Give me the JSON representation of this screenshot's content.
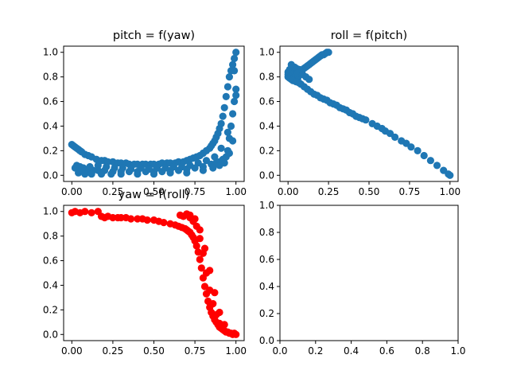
{
  "chart_data": [
    {
      "type": "scatter",
      "title": "pitch = f(yaw)",
      "xlabel": "",
      "ylabel": "",
      "xlim": [
        -0.05,
        1.05
      ],
      "ylim": [
        -0.05,
        1.05
      ],
      "xticks": [
        "0.00",
        "0.25",
        "0.50",
        "0.75",
        "1.00"
      ],
      "yticks": [
        "0.0",
        "0.2",
        "0.4",
        "0.6",
        "0.8",
        "1.0"
      ],
      "color": "#1f77b4",
      "points": {
        "x": [
          0.0,
          0.01,
          0.02,
          0.03,
          0.04,
          0.05,
          0.06,
          0.08,
          0.1,
          0.12,
          0.15,
          0.18,
          0.2,
          0.22,
          0.25,
          0.28,
          0.3,
          0.33,
          0.35,
          0.38,
          0.4,
          0.43,
          0.45,
          0.48,
          0.5,
          0.53,
          0.55,
          0.58,
          0.6,
          0.63,
          0.65,
          0.68,
          0.7,
          0.72,
          0.74,
          0.76,
          0.78,
          0.8,
          0.82,
          0.84,
          0.85,
          0.86,
          0.87,
          0.88,
          0.89,
          0.9,
          0.91,
          0.92,
          0.93,
          0.94,
          0.95,
          0.96,
          0.97,
          0.98,
          0.99,
          1.0,
          0.03,
          0.05,
          0.07,
          0.1,
          0.13,
          0.16,
          0.2,
          0.25,
          0.3,
          0.35,
          0.4,
          0.45,
          0.5,
          0.55,
          0.6,
          0.65,
          0.7,
          0.75,
          0.8,
          0.85,
          0.88,
          0.9,
          0.92,
          0.94,
          0.95,
          0.96,
          0.97,
          0.98,
          0.99,
          1.0,
          0.04,
          0.08,
          0.12,
          0.18,
          0.24,
          0.3,
          0.4,
          0.5,
          0.6,
          0.7,
          0.8,
          0.86,
          0.9,
          0.93,
          0.96,
          0.98,
          0.99,
          1.0,
          0.02,
          0.06,
          0.11,
          0.16,
          0.21,
          0.26,
          0.31,
          0.36,
          0.42,
          0.47,
          0.52,
          0.57,
          0.62,
          0.67,
          0.72,
          0.77,
          0.82,
          0.87,
          0.91,
          0.95
        ],
        "y": [
          0.25,
          0.24,
          0.23,
          0.22,
          0.21,
          0.2,
          0.19,
          0.17,
          0.16,
          0.15,
          0.13,
          0.12,
          0.12,
          0.11,
          0.11,
          0.1,
          0.1,
          0.1,
          0.09,
          0.09,
          0.09,
          0.09,
          0.09,
          0.09,
          0.09,
          0.09,
          0.1,
          0.1,
          0.1,
          0.1,
          0.11,
          0.11,
          0.12,
          0.13,
          0.14,
          0.15,
          0.16,
          0.18,
          0.2,
          0.22,
          0.24,
          0.26,
          0.28,
          0.31,
          0.34,
          0.38,
          0.42,
          0.48,
          0.55,
          0.64,
          0.72,
          0.8,
          0.85,
          0.9,
          0.95,
          1.0,
          0.08,
          0.07,
          0.06,
          0.05,
          0.04,
          0.04,
          0.04,
          0.03,
          0.03,
          0.03,
          0.03,
          0.03,
          0.03,
          0.03,
          0.04,
          0.04,
          0.05,
          0.06,
          0.07,
          0.09,
          0.1,
          0.11,
          0.13,
          0.15,
          0.2,
          0.3,
          0.4,
          0.5,
          0.6,
          0.7,
          0.02,
          0.01,
          0.01,
          0.01,
          0.01,
          0.01,
          0.01,
          0.01,
          0.02,
          0.02,
          0.04,
          0.06,
          0.08,
          0.1,
          0.18,
          0.28,
          0.85,
          0.65,
          0.06,
          0.05,
          0.07,
          0.08,
          0.07,
          0.06,
          0.06,
          0.05,
          0.06,
          0.05,
          0.06,
          0.06,
          0.07,
          0.07,
          0.08,
          0.1,
          0.12,
          0.15,
          0.22,
          0.35
        ]
      }
    },
    {
      "type": "scatter",
      "title": "roll = f(pitch)",
      "xlabel": "",
      "ylabel": "",
      "xlim": [
        -0.05,
        1.05
      ],
      "ylim": [
        -0.05,
        1.05
      ],
      "xticks": [
        "0.00",
        "0.25",
        "0.50",
        "0.75",
        "1.00"
      ],
      "yticks": [
        "0.0",
        "0.2",
        "0.4",
        "0.6",
        "0.8",
        "1.0"
      ],
      "color": "#1f77b4",
      "points": {
        "x": [
          0.0,
          0.0,
          0.0,
          0.01,
          0.01,
          0.01,
          0.02,
          0.02,
          0.02,
          0.03,
          0.03,
          0.03,
          0.04,
          0.04,
          0.05,
          0.05,
          0.06,
          0.06,
          0.07,
          0.08,
          0.09,
          0.1,
          0.11,
          0.12,
          0.13,
          0.14,
          0.15,
          0.16,
          0.17,
          0.18,
          0.19,
          0.2,
          0.21,
          0.22,
          0.23,
          0.24,
          0.25,
          0.08,
          0.1,
          0.12,
          0.14,
          0.16,
          0.18,
          0.2,
          0.22,
          0.24,
          0.26,
          0.28,
          0.3,
          0.32,
          0.34,
          0.36,
          0.38,
          0.4,
          0.42,
          0.44,
          0.46,
          0.48,
          0.52,
          0.55,
          0.58,
          0.6,
          0.63,
          0.66,
          0.7,
          0.73,
          0.76,
          0.8,
          0.84,
          0.88,
          0.92,
          0.96,
          0.99,
          1.0,
          0.03,
          0.05,
          0.07,
          0.04,
          0.06,
          0.02,
          0.09,
          0.11,
          0.13
        ],
        "y": [
          0.84,
          0.82,
          0.8,
          0.86,
          0.83,
          0.79,
          0.85,
          0.81,
          0.78,
          0.86,
          0.82,
          0.79,
          0.84,
          0.8,
          0.87,
          0.81,
          0.85,
          0.79,
          0.86,
          0.85,
          0.86,
          0.87,
          0.88,
          0.89,
          0.9,
          0.91,
          0.92,
          0.93,
          0.94,
          0.95,
          0.96,
          0.97,
          0.98,
          0.98,
          0.99,
          1.0,
          1.0,
          0.74,
          0.72,
          0.7,
          0.68,
          0.66,
          0.65,
          0.63,
          0.62,
          0.61,
          0.59,
          0.58,
          0.57,
          0.55,
          0.54,
          0.53,
          0.51,
          0.5,
          0.48,
          0.47,
          0.46,
          0.45,
          0.42,
          0.4,
          0.38,
          0.36,
          0.34,
          0.31,
          0.28,
          0.26,
          0.23,
          0.2,
          0.16,
          0.12,
          0.08,
          0.04,
          0.01,
          0.0,
          0.77,
          0.76,
          0.75,
          0.88,
          0.83,
          0.9,
          0.82,
          0.8,
          0.78
        ]
      }
    },
    {
      "type": "scatter",
      "title": "yaw = f(roll)",
      "xlabel": "",
      "ylabel": "",
      "xlim": [
        -0.05,
        1.05
      ],
      "ylim": [
        -0.05,
        1.05
      ],
      "xticks": [
        "0.00",
        "0.25",
        "0.50",
        "0.75",
        "1.00"
      ],
      "yticks": [
        "0.0",
        "0.2",
        "0.4",
        "0.6",
        "0.8",
        "1.0"
      ],
      "color": "#ff0000",
      "points": {
        "x": [
          0.0,
          0.02,
          0.05,
          0.08,
          0.12,
          0.16,
          0.18,
          0.2,
          0.22,
          0.25,
          0.28,
          0.3,
          0.33,
          0.36,
          0.4,
          0.43,
          0.46,
          0.5,
          0.53,
          0.56,
          0.6,
          0.63,
          0.65,
          0.67,
          0.69,
          0.7,
          0.71,
          0.72,
          0.73,
          0.74,
          0.75,
          0.76,
          0.77,
          0.78,
          0.79,
          0.8,
          0.81,
          0.82,
          0.83,
          0.84,
          0.85,
          0.86,
          0.87,
          0.88,
          0.89,
          0.9,
          0.91,
          0.92,
          0.93,
          0.94,
          0.95,
          0.96,
          0.97,
          0.98,
          0.99,
          1.0,
          0.66,
          0.68,
          0.7,
          0.72,
          0.74,
          0.76,
          0.78,
          0.8,
          0.82,
          0.84,
          0.86,
          0.88,
          0.9,
          0.72,
          0.75,
          0.78,
          0.81,
          0.84,
          0.87,
          0.9,
          0.93
        ],
        "y": [
          0.99,
          1.0,
          0.99,
          1.0,
          0.99,
          1.0,
          0.96,
          0.95,
          0.96,
          0.95,
          0.95,
          0.95,
          0.95,
          0.94,
          0.94,
          0.94,
          0.93,
          0.93,
          0.92,
          0.91,
          0.9,
          0.89,
          0.88,
          0.87,
          0.86,
          0.85,
          0.84,
          0.83,
          0.81,
          0.79,
          0.76,
          0.72,
          0.67,
          0.61,
          0.54,
          0.46,
          0.39,
          0.33,
          0.27,
          0.22,
          0.18,
          0.15,
          0.12,
          0.1,
          0.08,
          0.06,
          0.05,
          0.04,
          0.03,
          0.02,
          0.02,
          0.01,
          0.01,
          0.0,
          0.01,
          0.0,
          0.97,
          0.96,
          0.98,
          0.95,
          0.92,
          0.88,
          0.78,
          0.66,
          0.5,
          0.36,
          0.25,
          0.16,
          0.09,
          0.97,
          0.94,
          0.85,
          0.7,
          0.52,
          0.34,
          0.18,
          0.08
        ]
      }
    },
    {
      "type": "scatter",
      "title": "",
      "xlabel": "",
      "ylabel": "",
      "xlim": [
        0,
        1
      ],
      "ylim": [
        0,
        1
      ],
      "xticks": [
        "0.0",
        "0.2",
        "0.4",
        "0.6",
        "0.8",
        "1.0"
      ],
      "yticks": [
        "0.0",
        "0.2",
        "0.4",
        "0.6",
        "0.8",
        "1.0"
      ],
      "color": "#1f77b4",
      "points": {
        "x": [],
        "y": []
      }
    }
  ]
}
